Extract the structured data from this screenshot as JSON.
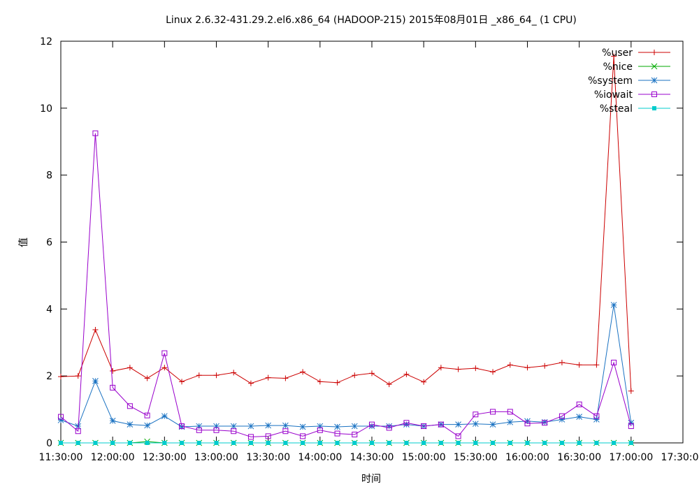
{
  "chart_data": {
    "type": "line",
    "title": "Linux 2.6.32-431.29.2.el6.x86_64 (HADOOP-215)  2015年08月01日  _x86_64_ (1 CPU)",
    "xlabel": "时间",
    "ylabel": "值",
    "xlim": [
      "11:30:00",
      "17:30:00"
    ],
    "ylim": [
      0,
      12
    ],
    "grid": false,
    "legend_position": "top-right",
    "x_ticks": [
      "11:30:00",
      "12:00:00",
      "12:30:00",
      "13:00:00",
      "13:30:00",
      "14:00:00",
      "14:30:00",
      "15:00:00",
      "15:30:00",
      "16:00:00",
      "16:30:00",
      "17:00:00",
      "17:30:00"
    ],
    "y_ticks": [
      "0",
      "2",
      "4",
      "6",
      "8",
      "10",
      "12"
    ],
    "x": [
      "11:30:00",
      "11:40:00",
      "11:50:00",
      "12:00:00",
      "12:10:00",
      "12:20:00",
      "12:30:00",
      "12:40:00",
      "12:50:00",
      "13:00:00",
      "13:10:00",
      "13:20:00",
      "13:30:00",
      "13:40:00",
      "13:50:00",
      "14:00:00",
      "14:10:00",
      "14:20:00",
      "14:30:00",
      "14:40:00",
      "14:50:00",
      "15:00:00",
      "15:10:00",
      "15:20:00",
      "15:30:00",
      "15:40:00",
      "15:50:00",
      "16:00:00",
      "16:10:00",
      "16:20:00",
      "16:30:00",
      "16:40:00",
      "16:50:00",
      "17:00:00"
    ],
    "series": [
      {
        "name": "%user",
        "color": "#cc0000",
        "marker": "plus",
        "values": [
          1.98,
          2.0,
          3.38,
          2.15,
          2.25,
          1.93,
          2.25,
          1.83,
          2.02,
          2.02,
          2.1,
          1.78,
          1.95,
          1.93,
          2.12,
          1.83,
          1.8,
          2.02,
          2.08,
          1.75,
          2.05,
          1.82,
          2.25,
          2.2,
          2.23,
          2.12,
          2.33,
          2.25,
          2.3,
          2.4,
          2.33,
          2.33,
          11.55,
          1.55
        ]
      },
      {
        "name": "%nice",
        "color": "#00aa00",
        "marker": "cross",
        "values": [
          0,
          0,
          0,
          0,
          0,
          0.04,
          0,
          0,
          0,
          0,
          0,
          0,
          0,
          0,
          0,
          0,
          0,
          0,
          0,
          0,
          0,
          0,
          0,
          0,
          0,
          0,
          0,
          0,
          0,
          0,
          0,
          0,
          0,
          0
        ]
      },
      {
        "name": "%system",
        "color": "#1a72c2",
        "marker": "star",
        "values": [
          0.68,
          0.5,
          1.85,
          0.66,
          0.55,
          0.52,
          0.8,
          0.48,
          0.5,
          0.5,
          0.5,
          0.5,
          0.52,
          0.52,
          0.48,
          0.5,
          0.48,
          0.5,
          0.5,
          0.5,
          0.55,
          0.5,
          0.55,
          0.55,
          0.57,
          0.55,
          0.62,
          0.65,
          0.62,
          0.7,
          0.78,
          0.7,
          4.12,
          0.6
        ]
      },
      {
        "name": "%iowait",
        "color": "#9900cc",
        "marker": "square",
        "values": [
          0.78,
          0.35,
          9.25,
          1.65,
          1.1,
          0.82,
          2.68,
          0.5,
          0.38,
          0.38,
          0.35,
          0.18,
          0.2,
          0.35,
          0.2,
          0.38,
          0.28,
          0.25,
          0.55,
          0.45,
          0.6,
          0.5,
          0.55,
          0.2,
          0.85,
          0.93,
          0.93,
          0.58,
          0.6,
          0.8,
          1.15,
          0.8,
          2.4,
          0.5
        ]
      },
      {
        "name": "%steal",
        "color": "#00cccc",
        "marker": "filled-square",
        "values": [
          0,
          0,
          0,
          0,
          0,
          0,
          0,
          0,
          0,
          0,
          0,
          0,
          0,
          0,
          0,
          0,
          0,
          0,
          0,
          0,
          0,
          0,
          0,
          0,
          0,
          0,
          0,
          0,
          0,
          0,
          0,
          0,
          0,
          0
        ]
      }
    ]
  }
}
